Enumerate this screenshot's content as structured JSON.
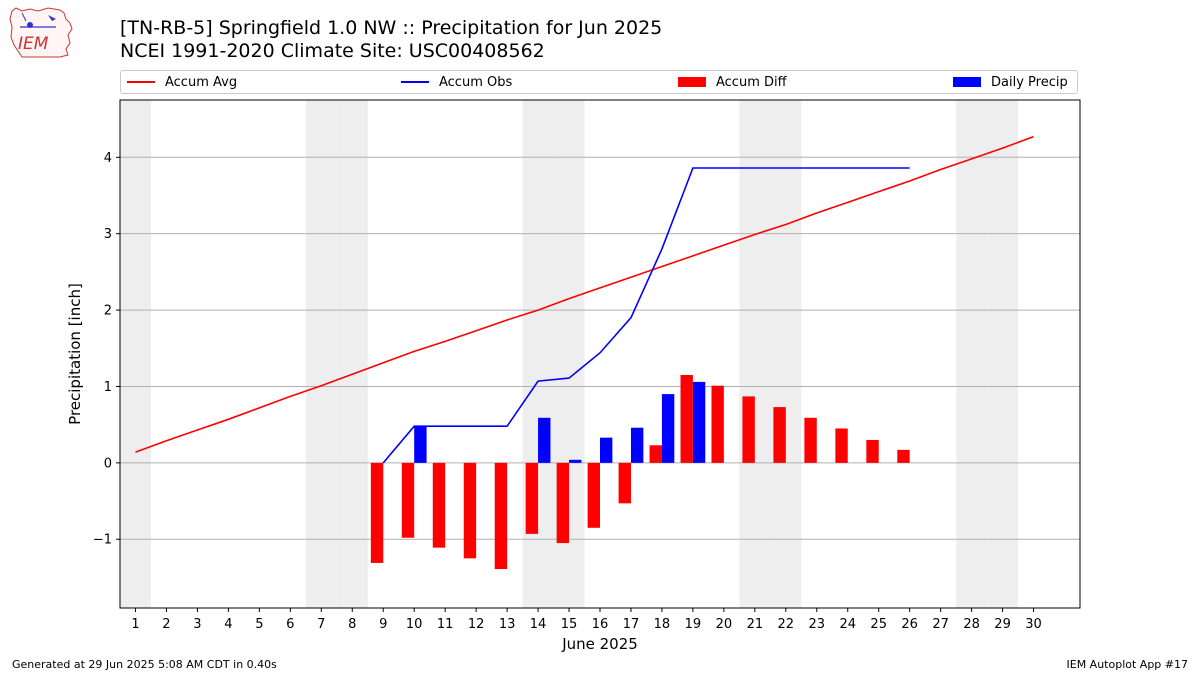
{
  "title_line1": "[TN-RB-5] Springfield 1.0 NW :: Precipitation for Jun 2025",
  "title_line2": "NCEI 1991-2020 Climate Site: USC00408562",
  "footer_left": "Generated at 29 Jun 2025 5:08 AM CDT in 0.40s",
  "footer_right": "IEM Autoplot App #17",
  "logo_text": "IEM",
  "colors": {
    "avg": "#ff0000",
    "obs": "#0000ff",
    "diff": "#ff0000",
    "daily": "#0000ff",
    "weekend": "#eeeeee",
    "grid": "#b0b0b0"
  },
  "legend": [
    {
      "label": "Accum Avg",
      "kind": "line",
      "color": "#ff0000"
    },
    {
      "label": "Accum Obs",
      "kind": "line",
      "color": "#0000ff"
    },
    {
      "label": "Accum Diff",
      "kind": "box",
      "color": "#ff0000"
    },
    {
      "label": "Daily Precip",
      "kind": "box",
      "color": "#0000ff"
    }
  ],
  "chart_data": {
    "type": "bar",
    "title": "[TN-RB-5] Springfield 1.0 NW :: Precipitation for Jun 2025",
    "subtitle": "NCEI 1991-2020 Climate Site: USC00408562",
    "xlabel": "June 2025",
    "ylabel": "Precipitation [inch]",
    "xlim": [
      0.5,
      31.5
    ],
    "ylim": [
      -1.9,
      4.75
    ],
    "yticks": [
      -1,
      0,
      1,
      2,
      3,
      4
    ],
    "ytick_labels": [
      "−1",
      "0",
      "1",
      "2",
      "3",
      "4"
    ],
    "x_ticks": [
      1,
      2,
      3,
      4,
      5,
      6,
      7,
      8,
      9,
      10,
      11,
      12,
      13,
      14,
      15,
      16,
      17,
      18,
      19,
      20,
      21,
      22,
      23,
      24,
      25,
      26,
      27,
      28,
      29,
      30
    ],
    "weekend_days": [
      1,
      7,
      8,
      14,
      15,
      21,
      22,
      28,
      29
    ],
    "grid": "horizontal",
    "legend_position": "top",
    "series": [
      {
        "name": "Accum Avg",
        "type": "line",
        "x": [
          1,
          2,
          3,
          4,
          5,
          6,
          7,
          8,
          9,
          10,
          11,
          12,
          13,
          14,
          15,
          16,
          17,
          18,
          19,
          20,
          21,
          22,
          23,
          24,
          25,
          26,
          27,
          28,
          29,
          30
        ],
        "values": [
          0.14,
          0.29,
          0.43,
          0.57,
          0.72,
          0.87,
          1.01,
          1.16,
          1.31,
          1.46,
          1.59,
          1.73,
          1.87,
          2.0,
          2.15,
          2.29,
          2.43,
          2.57,
          2.71,
          2.85,
          2.99,
          3.12,
          3.27,
          3.41,
          3.55,
          3.69,
          3.84,
          3.98,
          4.12,
          4.27
        ]
      },
      {
        "name": "Accum Obs",
        "type": "line",
        "x": [
          9,
          10,
          11,
          12,
          13,
          14,
          15,
          16,
          17,
          18,
          19,
          20,
          21,
          22,
          23,
          24,
          25,
          26
        ],
        "values": [
          0.0,
          0.48,
          0.48,
          0.48,
          0.48,
          1.07,
          1.11,
          1.44,
          1.9,
          2.8,
          3.86,
          3.86,
          3.86,
          3.86,
          3.86,
          3.86,
          3.86,
          3.86
        ]
      },
      {
        "name": "Accum Diff",
        "type": "bar",
        "x": [
          9,
          10,
          11,
          12,
          13,
          14,
          15,
          16,
          17,
          18,
          19,
          20,
          21,
          22,
          23,
          24,
          25,
          26
        ],
        "values": [
          -1.31,
          -0.98,
          -1.11,
          -1.25,
          -1.39,
          -0.93,
          -1.05,
          -0.85,
          -0.53,
          0.23,
          1.15,
          1.01,
          0.87,
          0.73,
          0.59,
          0.45,
          0.3,
          0.17
        ]
      },
      {
        "name": "Daily Precip",
        "type": "bar",
        "x": [
          10,
          14,
          15,
          16,
          17,
          18,
          19
        ],
        "values": [
          0.48,
          0.59,
          0.04,
          0.33,
          0.46,
          0.9,
          1.06
        ]
      }
    ]
  }
}
